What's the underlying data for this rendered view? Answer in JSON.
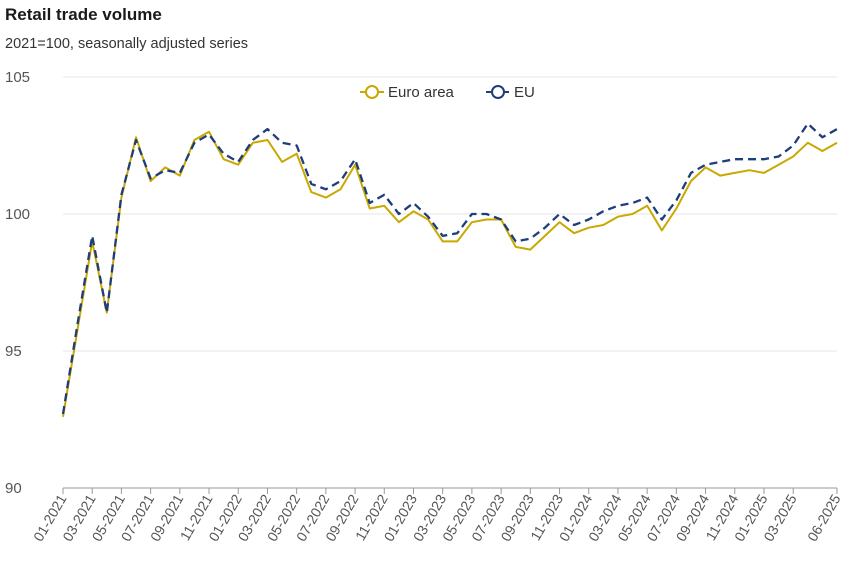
{
  "title": "Retail trade volume",
  "subtitle": "2021=100, seasonally adjusted series",
  "chart_data": {
    "type": "line",
    "title": "Retail trade volume",
    "subtitle": "2021=100, seasonally adjusted series",
    "ylim": [
      90,
      105
    ],
    "yticks": [
      90,
      95,
      100,
      105
    ],
    "grid": true,
    "legend_placement": "top-center",
    "x": [
      "01-2021",
      "02-2021",
      "03-2021",
      "04-2021",
      "05-2021",
      "06-2021",
      "07-2021",
      "08-2021",
      "09-2021",
      "10-2021",
      "11-2021",
      "12-2021",
      "01-2022",
      "02-2022",
      "03-2022",
      "04-2022",
      "05-2022",
      "06-2022",
      "07-2022",
      "08-2022",
      "09-2022",
      "10-2022",
      "11-2022",
      "12-2022",
      "01-2023",
      "02-2023",
      "03-2023",
      "04-2023",
      "05-2023",
      "06-2023",
      "07-2023",
      "08-2023",
      "09-2023",
      "10-2023",
      "11-2023",
      "12-2023",
      "01-2024",
      "02-2024",
      "03-2024",
      "04-2024",
      "05-2024",
      "06-2024",
      "07-2024",
      "08-2024",
      "09-2024",
      "10-2024",
      "11-2024",
      "12-2024",
      "01-2025",
      "02-2025",
      "03-2025",
      "04-2025",
      "05-2025",
      "06-2025"
    ],
    "xticklabels": [
      "01-2021",
      "03-2021",
      "05-2021",
      "07-2021",
      "09-2021",
      "11-2021",
      "01-2022",
      "03-2022",
      "05-2022",
      "07-2022",
      "09-2022",
      "11-2022",
      "01-2023",
      "03-2023",
      "05-2023",
      "07-2023",
      "09-2023",
      "11-2023",
      "01-2024",
      "03-2024",
      "05-2024",
      "07-2024",
      "09-2024",
      "11-2024",
      "01-2025",
      "03-2025",
      "06-2025"
    ],
    "series": [
      {
        "name": "Euro area",
        "color": "#c9a800",
        "style": "solid",
        "values": [
          92.6,
          95.8,
          99.0,
          96.4,
          100.6,
          102.8,
          101.2,
          101.7,
          101.4,
          102.7,
          103.0,
          102.0,
          101.8,
          102.6,
          102.7,
          101.9,
          102.2,
          100.8,
          100.6,
          100.9,
          101.8,
          100.2,
          100.3,
          99.7,
          100.1,
          99.8,
          99.0,
          99.0,
          99.7,
          99.8,
          99.8,
          98.8,
          98.7,
          99.2,
          99.7,
          99.3,
          99.5,
          99.6,
          99.9,
          100.0,
          100.3,
          99.4,
          100.2,
          101.2,
          101.7,
          101.4,
          101.5,
          101.6,
          101.5,
          101.8,
          102.1,
          102.6,
          102.3,
          102.6
        ]
      },
      {
        "name": "EU",
        "color": "#1f3d7a",
        "style": "dashed",
        "values": [
          92.7,
          96.0,
          99.2,
          96.4,
          100.7,
          102.7,
          101.3,
          101.6,
          101.5,
          102.6,
          102.9,
          102.2,
          101.9,
          102.7,
          103.1,
          102.6,
          102.5,
          101.1,
          100.9,
          101.2,
          102.0,
          100.4,
          100.7,
          100.0,
          100.4,
          99.9,
          99.2,
          99.3,
          100.0,
          100.0,
          99.8,
          99.0,
          99.1,
          99.5,
          100.0,
          99.6,
          99.8,
          100.1,
          100.3,
          100.4,
          100.6,
          99.8,
          100.5,
          101.5,
          101.8,
          101.9,
          102.0,
          102.0,
          102.0,
          102.1,
          102.5,
          103.3,
          102.8,
          103.1
        ]
      }
    ]
  }
}
